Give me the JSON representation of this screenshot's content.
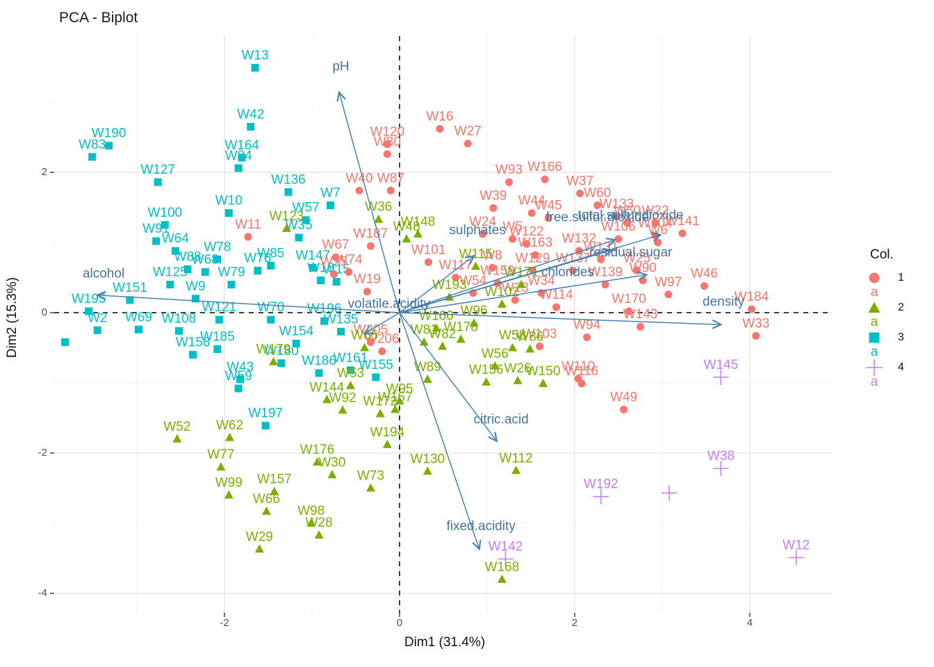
{
  "title": "PCA - Biplot",
  "axes": {
    "x_label": "Dim1 (31.4%)",
    "y_label": "Dim2 (15.3%)",
    "x_ticks": [
      -2,
      0,
      2,
      4
    ],
    "y_ticks": [
      -4,
      -2,
      0,
      2
    ],
    "xlim": [
      -3.944,
      4.937
    ],
    "ylim": [
      -4.277,
      3.941
    ]
  },
  "legend": {
    "title": "Col.",
    "text_key": "a",
    "items": [
      {
        "label": "1",
        "shape": "circle",
        "color": "#F8766D"
      },
      {
        "label": "2",
        "shape": "triangle",
        "color": "#7CAE00"
      },
      {
        "label": "3",
        "shape": "square",
        "color": "#00BFC4"
      },
      {
        "label": "4",
        "shape": "plus",
        "color": "#C77CFF"
      }
    ]
  },
  "colors": {
    "group1": "#F8766D",
    "group2": "#7CAE00",
    "group3": "#00BFC4",
    "group4": "#C77CFF",
    "arrow": "#4682B4",
    "arrow_label": "#44749F",
    "grid_major": "#E4E4E4",
    "grid_minor": "#F0F0F0",
    "zero_line": "#000000",
    "tick_text": "#4d4d4d"
  },
  "chart_data": {
    "type": "scatter",
    "title": "PCA - Biplot",
    "xlabel": "Dim1 (31.4%)",
    "ylabel": "Dim2 (15.3%)",
    "xlim": [
      -3.944,
      4.937
    ],
    "ylim": [
      -4.277,
      3.941
    ],
    "grid": true,
    "legend_position": "right",
    "groups": {
      "1": {
        "shape": "circle",
        "color": "#F8766D"
      },
      "2": {
        "shape": "triangle",
        "color": "#7CAE00"
      },
      "3": {
        "shape": "square",
        "color": "#00BFC4"
      },
      "4": {
        "shape": "plus",
        "color": "#C77CFF"
      }
    },
    "points": [
      [
        "W13",
        3,
        -1.65,
        3.49
      ],
      [
        "W42",
        3,
        -1.7,
        2.65
      ],
      [
        "W164",
        3,
        -1.8,
        2.21
      ],
      [
        "W84",
        3,
        -1.84,
        2.06
      ],
      [
        "W190",
        3,
        -3.32,
        2.38
      ],
      [
        "W83",
        3,
        -3.51,
        2.22
      ],
      [
        "W127",
        3,
        -2.76,
        1.86
      ],
      [
        "W136",
        3,
        -1.27,
        1.72
      ],
      [
        "W7",
        3,
        -0.79,
        1.53
      ],
      [
        "W10",
        3,
        -1.95,
        1.42
      ],
      [
        "W57",
        3,
        -1.07,
        1.32
      ],
      [
        "W35",
        3,
        -1.15,
        1.07
      ],
      [
        "W100",
        3,
        -2.68,
        1.25
      ],
      [
        "W91",
        3,
        -2.78,
        1.02
      ],
      [
        "W64",
        3,
        -2.56,
        0.88
      ],
      [
        "W78",
        3,
        -2.08,
        0.76
      ],
      [
        "W88",
        3,
        -2.42,
        0.62
      ],
      [
        "W68",
        3,
        -2.22,
        0.58
      ],
      [
        "W85",
        3,
        -1.47,
        0.67
      ],
      [
        "W76",
        3,
        -1.62,
        0.6
      ],
      [
        "W147",
        3,
        -0.99,
        0.64
      ],
      [
        "W18",
        3,
        -0.9,
        0.46
      ],
      [
        "W15",
        3,
        -0.72,
        0.44
      ],
      [
        "W79",
        3,
        -1.92,
        0.4
      ],
      [
        "W9",
        3,
        -2.33,
        0.2
      ],
      [
        "W125",
        3,
        -2.62,
        0.4
      ],
      [
        "W151",
        3,
        -3.08,
        0.18
      ],
      [
        "W195",
        3,
        -3.55,
        0.02
      ],
      [
        "W2",
        3,
        -3.45,
        -0.25
      ],
      [
        "W69",
        3,
        -2.98,
        -0.24
      ],
      [
        "W108",
        3,
        -2.52,
        -0.26
      ],
      [
        "W121",
        3,
        -2.06,
        -0.1
      ],
      [
        "W70",
        3,
        -1.47,
        -0.1
      ],
      [
        "W196",
        3,
        -0.86,
        -0.12
      ],
      [
        "W135",
        3,
        -0.67,
        -0.27
      ],
      [
        "W158",
        3,
        -2.36,
        -0.6
      ],
      [
        "W185",
        3,
        -2.08,
        -0.52
      ],
      [
        "W154",
        3,
        -1.18,
        -0.44
      ],
      [
        "W180",
        3,
        -1.35,
        -0.72
      ],
      [
        "W186",
        3,
        -0.92,
        -0.86
      ],
      [
        "W161",
        3,
        -0.56,
        -0.82
      ],
      [
        "W155",
        3,
        -0.27,
        -0.92
      ],
      [
        "W43",
        3,
        -1.82,
        -0.95
      ],
      [
        "W59",
        3,
        -1.84,
        -1.08
      ],
      [
        "W197",
        3,
        -1.53,
        -1.61
      ],
      [
        "",
        3,
        -3.82,
        -0.42
      ],
      [
        "W16",
        1,
        0.46,
        2.62
      ],
      [
        "W27",
        1,
        0.78,
        2.41
      ],
      [
        "W120",
        1,
        -0.14,
        2.4
      ],
      [
        "W80",
        1,
        -0.14,
        2.26
      ],
      [
        "W40",
        1,
        -0.46,
        1.74
      ],
      [
        "W87",
        1,
        -0.1,
        1.74
      ],
      [
        "W93",
        1,
        1.25,
        1.86
      ],
      [
        "W166",
        1,
        1.66,
        1.9
      ],
      [
        "W37",
        1,
        2.06,
        1.7
      ],
      [
        "W39",
        1,
        1.07,
        1.49
      ],
      [
        "W44",
        1,
        1.51,
        1.42
      ],
      [
        "W45",
        1,
        1.7,
        1.35
      ],
      [
        "W60",
        1,
        2.26,
        1.53
      ],
      [
        "W133",
        1,
        2.48,
        1.37
      ],
      [
        "W50",
        1,
        2.6,
        1.28
      ],
      [
        "W22",
        1,
        2.92,
        1.28
      ],
      [
        "W141",
        1,
        3.23,
        1.13
      ],
      [
        "W24",
        1,
        0.95,
        1.12
      ],
      [
        "W5",
        1,
        1.29,
        1.05
      ],
      [
        "W122",
        1,
        1.45,
        0.98
      ],
      [
        "W106",
        1,
        2.5,
        1.05
      ],
      [
        "W104",
        1,
        2.92,
        1.1
      ],
      [
        "W6",
        1,
        2.95,
        1.0
      ],
      [
        "W163",
        1,
        1.55,
        0.82
      ],
      [
        "W131",
        1,
        2.3,
        0.76
      ],
      [
        "W132",
        1,
        2.05,
        0.88
      ],
      [
        "W137",
        1,
        1.98,
        0.6
      ],
      [
        "W25",
        1,
        2.71,
        0.6
      ],
      [
        "W90",
        1,
        2.78,
        0.46
      ],
      [
        "W97",
        1,
        3.07,
        0.26
      ],
      [
        "W46",
        1,
        3.48,
        0.38
      ],
      [
        "W170",
        1,
        2.62,
        0.02
      ],
      [
        "W143",
        1,
        2.75,
        -0.2
      ],
      [
        "W94",
        1,
        2.14,
        -0.35
      ],
      [
        "W114",
        1,
        1.79,
        0.08
      ],
      [
        "W34",
        1,
        1.62,
        0.28
      ],
      [
        "W23",
        1,
        1.32,
        0.18
      ],
      [
        "W139",
        1,
        2.35,
        0.4
      ],
      [
        "W129",
        1,
        1.52,
        0.6
      ],
      [
        "W159",
        1,
        1.12,
        0.42
      ],
      [
        "W117",
        1,
        0.64,
        0.5
      ],
      [
        "W54",
        1,
        0.84,
        0.28
      ],
      [
        "W8",
        1,
        1.06,
        0.64
      ],
      [
        "W187",
        1,
        -0.33,
        0.95
      ],
      [
        "W67",
        1,
        -0.73,
        0.79
      ],
      [
        "W74",
        1,
        -0.58,
        0.58
      ],
      [
        "W101",
        1,
        0.33,
        0.72
      ],
      [
        "W19",
        1,
        -0.37,
        0.3
      ],
      [
        "W75",
        1,
        -0.75,
        0.55
      ],
      [
        "W11",
        1,
        -1.73,
        1.08
      ],
      [
        "W184",
        1,
        4.02,
        0.05
      ],
      [
        "W33",
        1,
        4.07,
        -0.33
      ],
      [
        "W49",
        1,
        2.56,
        -1.38
      ],
      [
        "W103",
        1,
        1.6,
        -0.48
      ],
      [
        "W110",
        1,
        2.04,
        -0.94
      ],
      [
        "W116",
        1,
        2.08,
        -1.01
      ],
      [
        "W205",
        1,
        -0.33,
        -0.42
      ],
      [
        "W206",
        1,
        -0.2,
        -0.55
      ],
      [
        "W36",
        2,
        -0.24,
        1.33
      ],
      [
        "W123",
        2,
        -1.29,
        1.2
      ],
      [
        "W148",
        2,
        0.21,
        1.12
      ],
      [
        "W48",
        2,
        0.08,
        1.05
      ],
      [
        "W115",
        2,
        0.87,
        0.66
      ],
      [
        "W193",
        2,
        0.57,
        0.22
      ],
      [
        "W171",
        2,
        1.39,
        0.4
      ],
      [
        "W102",
        2,
        1.17,
        0.12
      ],
      [
        "W96",
        2,
        0.85,
        -0.15
      ],
      [
        "W160",
        2,
        0.42,
        -0.22
      ],
      [
        "W178",
        2,
        0.7,
        -0.38
      ],
      [
        "W65",
        2,
        -0.4,
        -0.5
      ],
      [
        "W81",
        2,
        0.28,
        -0.42
      ],
      [
        "W82",
        2,
        0.49,
        -0.48
      ],
      [
        "W58",
        2,
        1.29,
        -0.5
      ],
      [
        "W86",
        2,
        1.49,
        -0.52
      ],
      [
        "W56",
        2,
        1.09,
        -0.76
      ],
      [
        "W89",
        2,
        0.32,
        -0.95
      ],
      [
        "W156",
        2,
        0.99,
        -0.99
      ],
      [
        "W26",
        2,
        1.35,
        -0.97
      ],
      [
        "W150",
        2,
        1.64,
        -1.01
      ],
      [
        "W95",
        2,
        0.0,
        -1.26
      ],
      [
        "W167",
        2,
        -0.05,
        -1.38
      ],
      [
        "W53",
        2,
        -0.56,
        -1.04
      ],
      [
        "W144",
        2,
        -0.83,
        -1.24
      ],
      [
        "W92",
        2,
        -0.65,
        -1.39
      ],
      [
        "W172",
        2,
        -0.22,
        -1.44
      ],
      [
        "W179",
        2,
        -1.44,
        -0.7
      ],
      [
        "W52",
        2,
        -2.54,
        -1.8
      ],
      [
        "W62",
        2,
        -1.94,
        -1.78
      ],
      [
        "W77",
        2,
        -2.04,
        -2.2
      ],
      [
        "W99",
        2,
        -1.95,
        -2.6
      ],
      [
        "W157",
        2,
        -1.43,
        -2.55
      ],
      [
        "W66",
        2,
        -1.52,
        -2.83
      ],
      [
        "W98",
        2,
        -1.01,
        -3.0
      ],
      [
        "W28",
        2,
        -0.92,
        -3.17
      ],
      [
        "W29",
        2,
        -1.6,
        -3.37
      ],
      [
        "W176",
        2,
        -0.94,
        -2.13
      ],
      [
        "W30",
        2,
        -0.77,
        -2.31
      ],
      [
        "W73",
        2,
        -0.33,
        -2.5
      ],
      [
        "W194",
        2,
        -0.14,
        -1.88
      ],
      [
        "W130",
        2,
        0.32,
        -2.26
      ],
      [
        "W112",
        2,
        1.33,
        -2.25
      ],
      [
        "W168",
        2,
        1.17,
        -3.8
      ],
      [
        "W145",
        4,
        3.67,
        -0.92
      ],
      [
        "W38",
        4,
        3.67,
        -2.22
      ],
      [
        "W192",
        4,
        2.3,
        -2.62
      ],
      [
        "",
        4,
        3.08,
        -2.57
      ],
      [
        "W12",
        4,
        4.53,
        -3.49
      ],
      [
        "W142",
        4,
        1.21,
        -3.51
      ]
    ],
    "loadings": [
      {
        "label": "pH",
        "x": -0.69,
        "y": 3.14,
        "lx": -0.67,
        "ly": 3.45
      },
      {
        "label": "alcohol",
        "x": -3.45,
        "y": 0.25,
        "lx": -3.38,
        "ly": 0.5
      },
      {
        "label": "volatile.acidity",
        "x": -0.4,
        "y": -0.3,
        "lx": -0.12,
        "ly": 0.07
      },
      {
        "label": "sulphates",
        "x": 0.85,
        "y": 0.81,
        "lx": 0.89,
        "ly": 1.12
      },
      {
        "label": "free.sulfur.dioxide",
        "x": 2.46,
        "y": 1.04,
        "lx": 2.26,
        "ly": 1.3
      },
      {
        "label": "total.sulfur.dioxide",
        "x": 2.98,
        "y": 1.11,
        "lx": 2.64,
        "ly": 1.33
      },
      {
        "label": "residual.sugar",
        "x": 2.42,
        "y": 0.89,
        "lx": 2.64,
        "ly": 0.8
      },
      {
        "label": "chlorides",
        "x": 2.82,
        "y": 0.54,
        "lx": 1.92,
        "ly": 0.52
      },
      {
        "label": "density",
        "x": 3.67,
        "y": -0.17,
        "lx": 3.7,
        "ly": 0.1
      },
      {
        "label": "citric.acid",
        "x": 1.11,
        "y": -1.83,
        "lx": 1.16,
        "ly": -1.58
      },
      {
        "label": "fixed.acidity",
        "x": 0.91,
        "y": -3.37,
        "lx": 0.93,
        "ly": -3.1
      }
    ]
  }
}
